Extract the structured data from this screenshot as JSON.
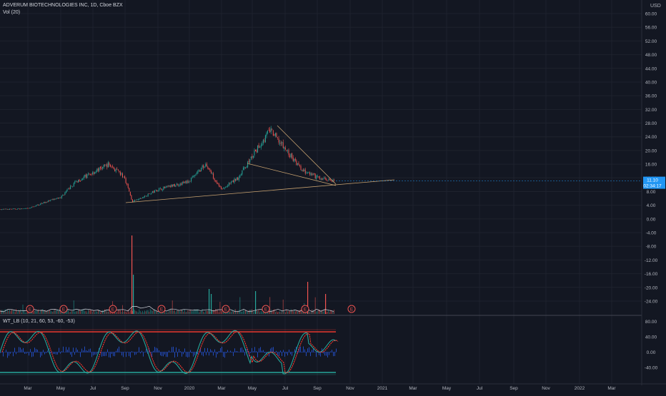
{
  "header": {
    "symbol_title": "ADVERUM BIOTECHNOLOGIES INC, 1D, Cboe BZX",
    "volume_label": "Vol (20)",
    "currency": "USD"
  },
  "price_axis": {
    "ticks": [
      "60.00",
      "56.00",
      "52.00",
      "48.00",
      "44.00",
      "40.00",
      "36.00",
      "32.00",
      "28.00",
      "24.00",
      "20.00",
      "16.00",
      "12.00",
      "8.00",
      "4.00",
      "0.00",
      "-4.00",
      "-8.00",
      "-12.00",
      "-16.00",
      "-20.00",
      "-24.00"
    ],
    "last_price_tag": "11.10",
    "countdown_tag": "02:34:17"
  },
  "indicator": {
    "title": "WT_LB (10, 21, 60, 53, -60, -53)",
    "ticks": [
      "80.00",
      "40.00",
      "0.00",
      "-40.00"
    ],
    "levels": {
      "upper": 53,
      "lower": -53
    },
    "colors": {
      "wt1": "#26a69a",
      "wt2": "#ff3b30",
      "diff": "#2962ff",
      "upper": "#ff3b30",
      "lower": "#26a69a"
    }
  },
  "time_axis": {
    "labels": [
      "Mar",
      "May",
      "Jul",
      "Sep",
      "Nov",
      "2020",
      "Mar",
      "May",
      "Jul",
      "Sep",
      "Nov",
      "2021",
      "Mar",
      "May",
      "Jul",
      "Sep",
      "Nov",
      "2022",
      "Mar"
    ]
  },
  "earnings": {
    "marker": "E",
    "count": 10
  },
  "chart_data": {
    "type": "candlestick",
    "series": [
      {
        "name": "ADVERUM BIOTECHNOLOGIES INC",
        "approx_close_path": [
          {
            "x": "2019-02",
            "y": 2.8
          },
          {
            "x": "2019-03",
            "y": 3.0
          },
          {
            "x": "2019-04",
            "y": 4.8
          },
          {
            "x": "2019-05",
            "y": 6.2
          },
          {
            "x": "2019-06",
            "y": 11.0
          },
          {
            "x": "2019-07",
            "y": 13.5
          },
          {
            "x": "2019-08",
            "y": 16.0
          },
          {
            "x": "2019-09",
            "y": 12.0
          },
          {
            "x": "2019-09-15",
            "y": 5.0
          },
          {
            "x": "2019-10",
            "y": 6.0
          },
          {
            "x": "2019-11",
            "y": 8.5
          },
          {
            "x": "2020-01",
            "y": 11.0
          },
          {
            "x": "2020-02",
            "y": 16.0
          },
          {
            "x": "2020-03",
            "y": 8.5
          },
          {
            "x": "2020-04",
            "y": 12.0
          },
          {
            "x": "2020-05",
            "y": 19.0
          },
          {
            "x": "2020-06",
            "y": 26.0
          },
          {
            "x": "2020-07",
            "y": 20.0
          },
          {
            "x": "2020-08",
            "y": 14.0
          },
          {
            "x": "2020-09",
            "y": 12.0
          },
          {
            "x": "2020-10",
            "y": 11.1
          }
        ]
      }
    ],
    "ylim": [
      -24,
      60
    ],
    "last_value": 11.1,
    "trendlines": [
      "rising support",
      "falling wedge upper",
      "falling wedge lower"
    ],
    "grid": true
  }
}
